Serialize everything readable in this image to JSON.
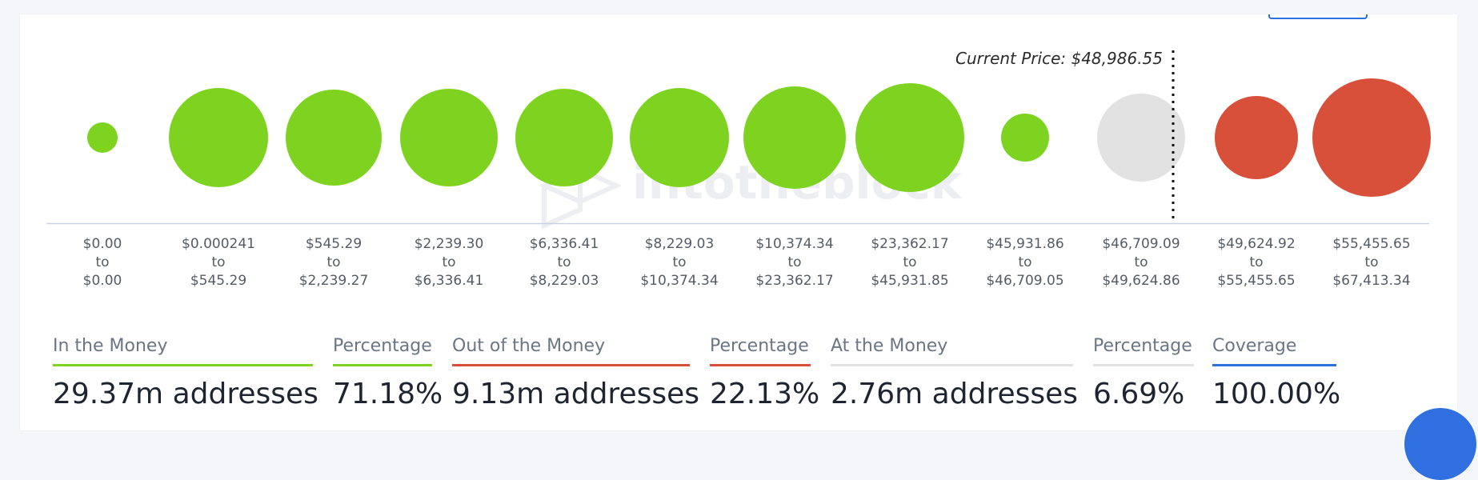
{
  "current_price": {
    "label": "Current Price: $48,986.55",
    "value": 48986.55
  },
  "chart_data": {
    "type": "scatter",
    "title": "",
    "xlabel": "",
    "ylabel": "",
    "grid": false,
    "colors": {
      "in_the_money": "#7ed321",
      "out_of_the_money": "#d9503a",
      "at_the_money": "#e2e2e2"
    },
    "current_price": 48986.55,
    "bubbles": [
      {
        "range": [
          "$0.00",
          "to",
          "$0.00"
        ],
        "status": "in_the_money",
        "relative_size": 0.26
      },
      {
        "range": [
          "$0.000241",
          "to",
          "$545.29"
        ],
        "status": "in_the_money",
        "relative_size": 0.84
      },
      {
        "range": [
          "$545.29",
          "to",
          "$2,239.27"
        ],
        "status": "in_the_money",
        "relative_size": 0.81
      },
      {
        "range": [
          "$2,239.30",
          "to",
          "$6,336.41"
        ],
        "status": "in_the_money",
        "relative_size": 0.82
      },
      {
        "range": [
          "$6,336.41",
          "to",
          "$8,229.03"
        ],
        "status": "in_the_money",
        "relative_size": 0.82
      },
      {
        "range": [
          "$8,229.03",
          "to",
          "$10,374.34"
        ],
        "status": "in_the_money",
        "relative_size": 0.84
      },
      {
        "range": [
          "$10,374.34",
          "to",
          "$23,362.17"
        ],
        "status": "in_the_money",
        "relative_size": 0.86
      },
      {
        "range": [
          "$23,362.17",
          "to",
          "$45,931.85"
        ],
        "status": "in_the_money",
        "relative_size": 0.92
      },
      {
        "range": [
          "$45,931.86",
          "to",
          "$46,709.05"
        ],
        "status": "in_the_money",
        "relative_size": 0.41
      },
      {
        "range": [
          "$46,709.09",
          "to",
          "$49,624.86"
        ],
        "status": "at_the_money",
        "relative_size": 0.74
      },
      {
        "range": [
          "$49,624.92",
          "to",
          "$55,455.65"
        ],
        "status": "out_of_the_money",
        "relative_size": 0.7
      },
      {
        "range": [
          "$55,455.65",
          "to",
          "$67,413.34"
        ],
        "status": "out_of_the_money",
        "relative_size": 1.0
      }
    ]
  },
  "stats": [
    {
      "label": "In the Money",
      "value": "29.37m addresses",
      "color": "#7ed321"
    },
    {
      "label": "Percentage",
      "value": "71.18%",
      "color": "#7ed321"
    },
    {
      "label": "Out of the Money",
      "value": "9.13m addresses",
      "color": "#d9503a"
    },
    {
      "label": "Percentage",
      "value": "22.13%",
      "color": "#d9503a"
    },
    {
      "label": "At the Money",
      "value": "2.76m addresses",
      "color": "#e2e2e2"
    },
    {
      "label": "Percentage",
      "value": "6.69%",
      "color": "#e2e2e2"
    },
    {
      "label": "Coverage",
      "value": "100.00%",
      "color": "#2f6fe0"
    }
  ],
  "watermark_text": "intotheblock"
}
